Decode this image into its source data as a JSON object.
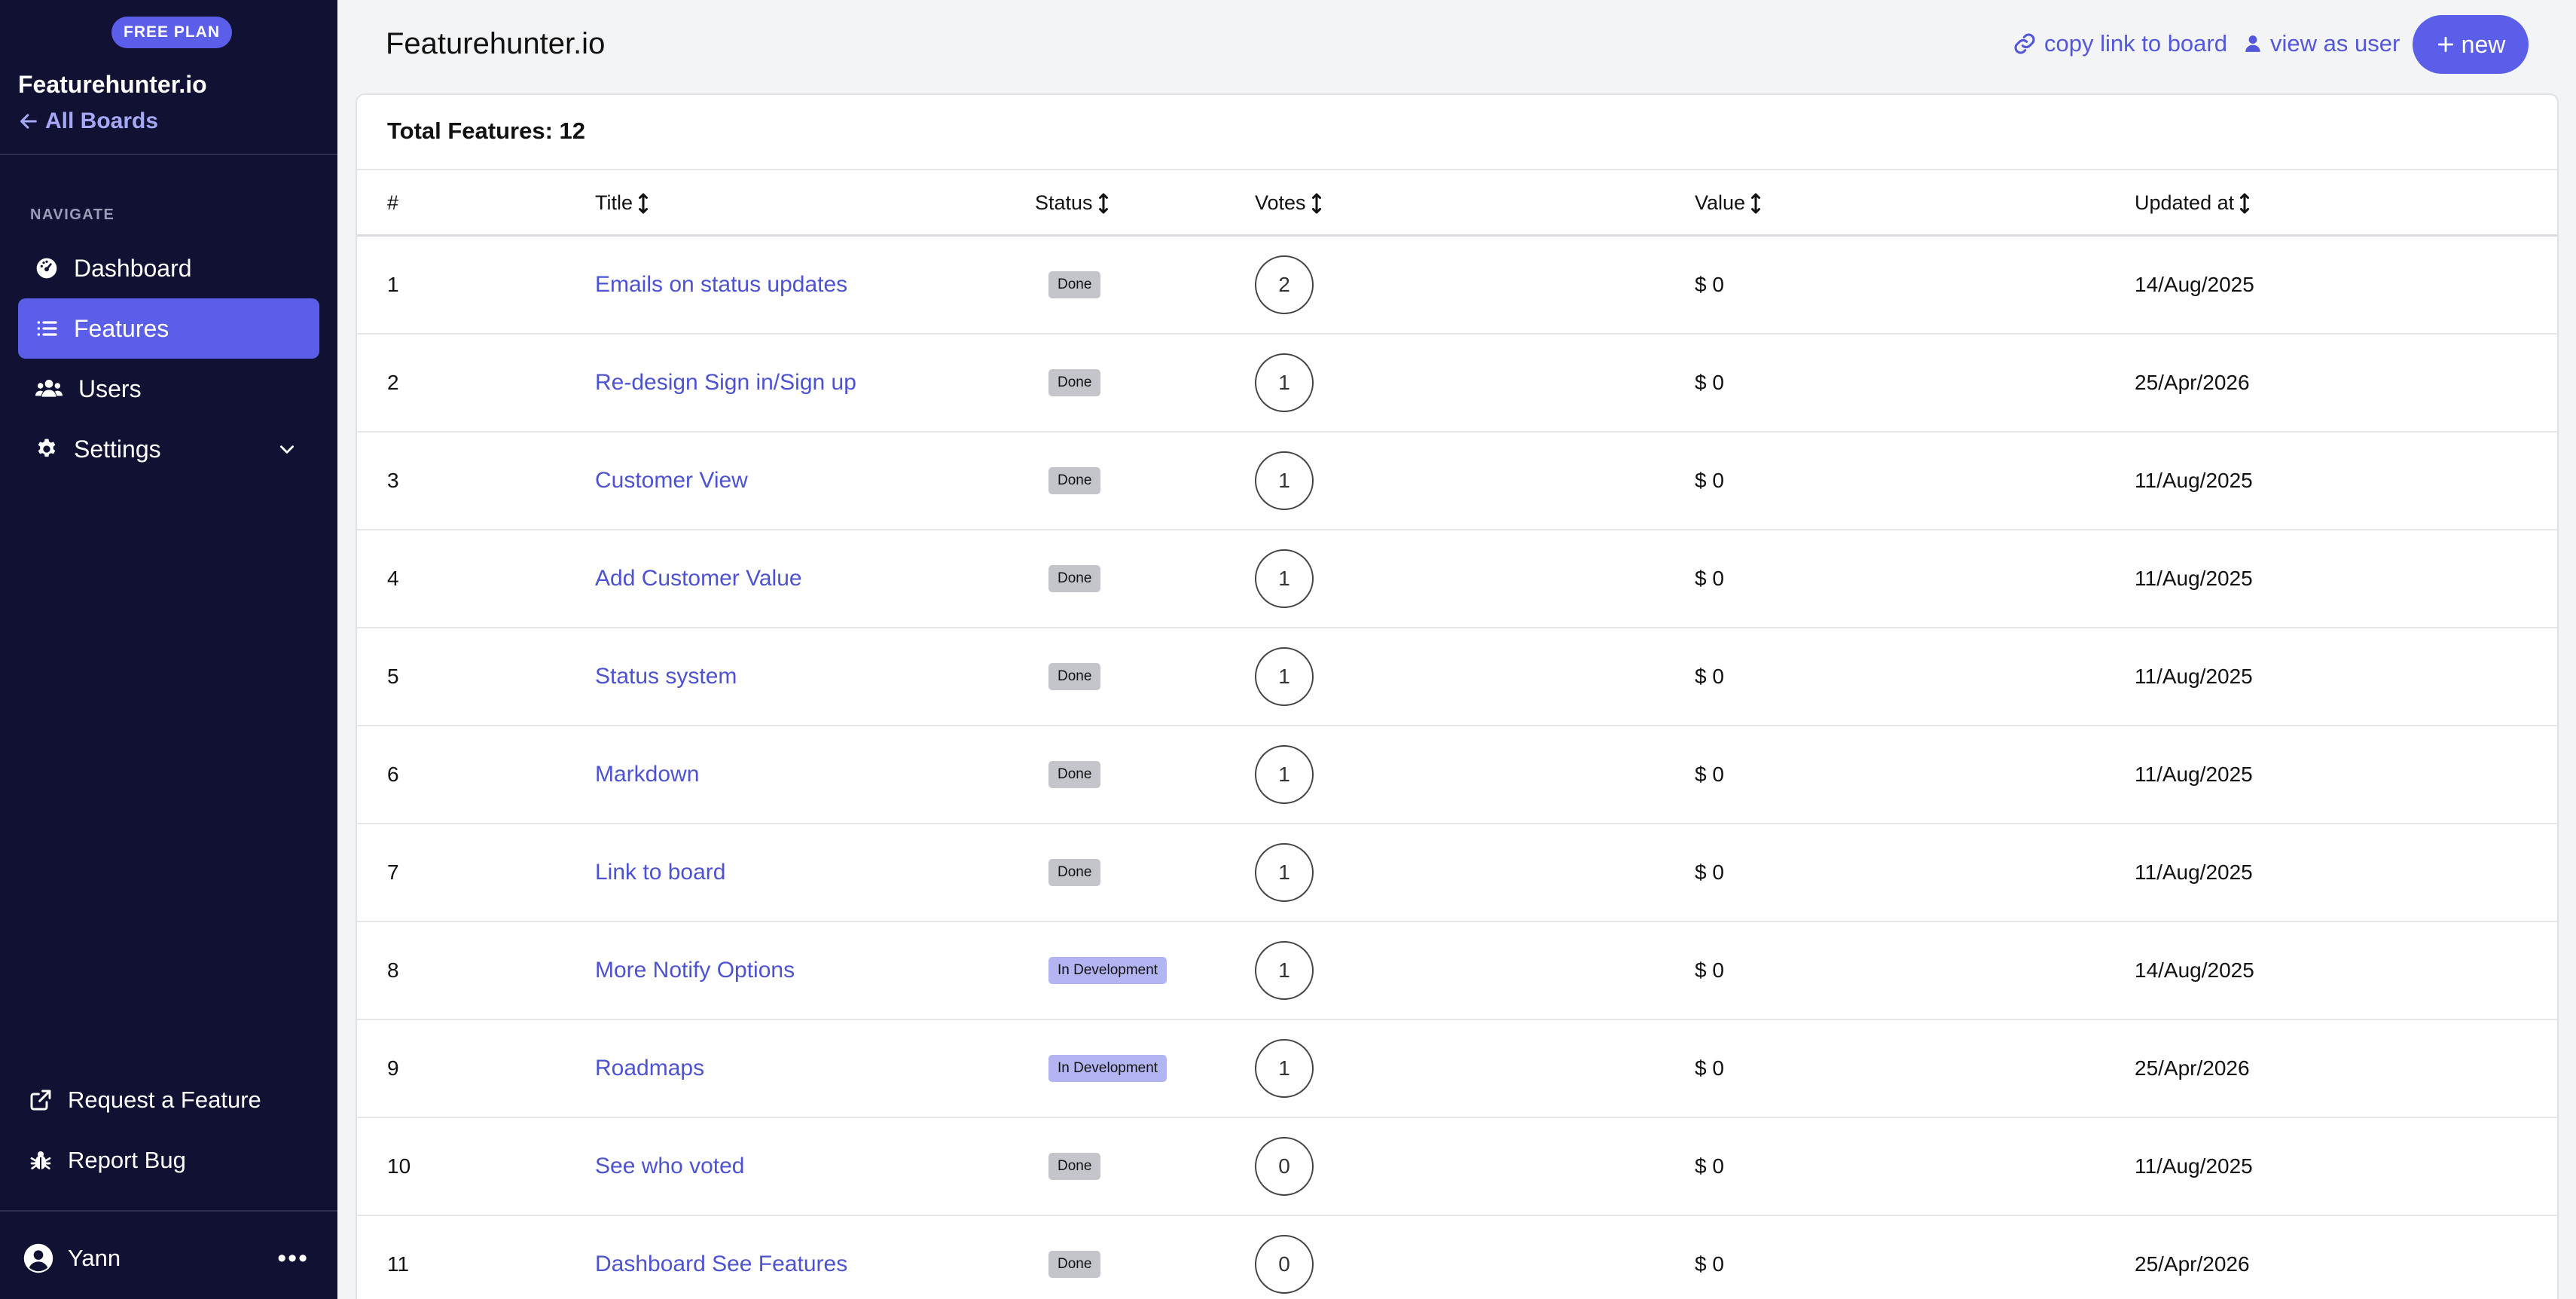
{
  "sidebar": {
    "plan_badge": "FREE PLAN",
    "brand": "Featurehunter.io",
    "all_boards": "All Boards",
    "nav_heading": "NAVIGATE",
    "items": [
      {
        "label": "Dashboard",
        "icon": "dashboard-icon"
      },
      {
        "label": "Features",
        "icon": "list-icon",
        "active": true
      },
      {
        "label": "Users",
        "icon": "users-icon"
      },
      {
        "label": "Settings",
        "icon": "gear-icon"
      }
    ],
    "request_feature": "Request a Feature",
    "report_bug": "Report Bug",
    "user_name": "Yann",
    "more": "•••"
  },
  "header": {
    "title": "Featurehunter.io",
    "copy_link": "copy link to board",
    "view_as_user": "view as user",
    "new_label": "new"
  },
  "table": {
    "total": "Total Features: 12",
    "columns": {
      "num": "#",
      "title": "Title",
      "status": "Status",
      "votes": "Votes",
      "value": "Value",
      "updated": "Updated at"
    },
    "rows": [
      {
        "num": "1",
        "title": "Emails on status updates",
        "status": "Done",
        "votes": "2",
        "value": "$ 0",
        "updated": "14/Aug/2025"
      },
      {
        "num": "2",
        "title": "Re-design Sign in/Sign up",
        "status": "Done",
        "votes": "1",
        "value": "$ 0",
        "updated": "25/Apr/2026"
      },
      {
        "num": "3",
        "title": "Customer View",
        "status": "Done",
        "votes": "1",
        "value": "$ 0",
        "updated": "11/Aug/2025"
      },
      {
        "num": "4",
        "title": "Add Customer Value",
        "status": "Done",
        "votes": "1",
        "value": "$ 0",
        "updated": "11/Aug/2025"
      },
      {
        "num": "5",
        "title": "Status system",
        "status": "Done",
        "votes": "1",
        "value": "$ 0",
        "updated": "11/Aug/2025"
      },
      {
        "num": "6",
        "title": "Markdown",
        "status": "Done",
        "votes": "1",
        "value": "$ 0",
        "updated": "11/Aug/2025"
      },
      {
        "num": "7",
        "title": "Link to board",
        "status": "Done",
        "votes": "1",
        "value": "$ 0",
        "updated": "11/Aug/2025"
      },
      {
        "num": "8",
        "title": "More Notify Options",
        "status": "In Development",
        "votes": "1",
        "value": "$ 0",
        "updated": "14/Aug/2025"
      },
      {
        "num": "9",
        "title": "Roadmaps",
        "status": "In Development",
        "votes": "1",
        "value": "$ 0",
        "updated": "25/Apr/2026"
      },
      {
        "num": "10",
        "title": "See who voted",
        "status": "Done",
        "votes": "0",
        "value": "$ 0",
        "updated": "11/Aug/2025"
      },
      {
        "num": "11",
        "title": "Dashboard See Features",
        "status": "Done",
        "votes": "0",
        "value": "$ 0",
        "updated": "25/Apr/2026"
      }
    ]
  },
  "colors": {
    "sidebar_bg": "#111233",
    "accent": "#5b5ee8",
    "link": "#4d52d0",
    "badge_done": "#c3c5cb",
    "badge_dev": "#b3b5f3"
  }
}
